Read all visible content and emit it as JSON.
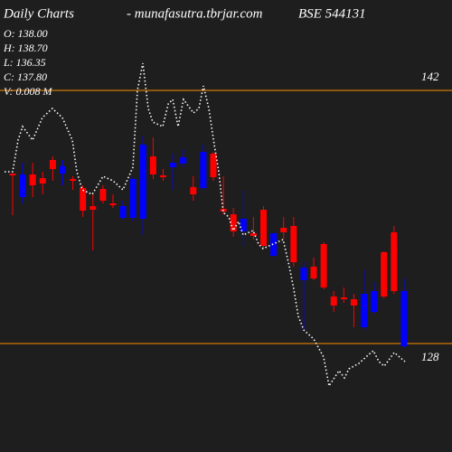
{
  "chart_data": {
    "type": "candlestick",
    "title": "Daily Charts",
    "source": "- munafasutra.tbrjar.com",
    "symbol": "BSE 544131",
    "ohlc_labels": [
      "O: 138.00",
      "H: 138.70",
      "L: 136.35",
      "C: 137.80",
      "V: 0.008 M"
    ],
    "up_color": "#0000ff",
    "down_color": "#ff0000",
    "level_color": "#ff8c00",
    "line_color": "#ffffff",
    "xlim": [
      -1.26,
      43.78
    ],
    "ylim": [
      122,
      147
    ],
    "levels": [
      142,
      128
    ],
    "open": [
      137.4,
      136.1,
      137.35,
      137.15,
      138.15,
      137.4,
      137.1,
      136.6,
      135.6,
      136.55,
      135.75,
      134.95,
      134.95,
      134.9,
      138.35,
      137.3,
      137.75,
      137.95,
      136.65,
      136.6,
      138.5,
      135.45,
      135.15,
      134.2,
      134.1,
      135.4,
      132.85,
      134.4,
      134.5,
      131.5,
      132.25,
      133.5,
      130.6,
      130.55,
      130.45,
      128.9,
      129.75,
      133.05,
      134.15,
      127.85
    ],
    "high": [
      137.4,
      138.0,
      138.0,
      137.5,
      138.35,
      138.15,
      137.25,
      136.75,
      136.25,
      136.75,
      136.25,
      135.9,
      137.25,
      139.5,
      139.4,
      137.65,
      138.5,
      138.75,
      137.25,
      139.0,
      138.6,
      137.25,
      135.5,
      136.5,
      135.0,
      135.6,
      134.25,
      135.0,
      135.0,
      132.5,
      132.75,
      133.6,
      130.9,
      131.1,
      130.75,
      132.1,
      131.4,
      133.1,
      134.5,
      131.6
    ],
    "low": [
      135.1,
      135.75,
      136.1,
      136.25,
      137.0,
      136.75,
      136.5,
      135.0,
      133.15,
      135.75,
      135.5,
      134.85,
      134.75,
      134.0,
      137.1,
      137.0,
      136.5,
      137.75,
      135.9,
      136.5,
      137.0,
      135.15,
      133.9,
      133.4,
      133.75,
      133.25,
      132.65,
      133.75,
      132.25,
      128.75,
      131.5,
      131.0,
      129.75,
      130.25,
      128.9,
      128.75,
      129.6,
      130.5,
      130.75,
      127.75
    ],
    "close": [
      137.3,
      137.35,
      136.75,
      136.85,
      137.65,
      137.8,
      137.0,
      135.35,
      135.4,
      135.9,
      135.65,
      135.6,
      137.1,
      139.0,
      137.35,
      137.2,
      138.0,
      138.3,
      136.25,
      138.6,
      137.2,
      135.3,
      134.2,
      134.9,
      133.95,
      133.4,
      134.1,
      134.15,
      132.5,
      132.2,
      131.6,
      131.1,
      130.1,
      130.45,
      130.1,
      130.75,
      130.9,
      130.6,
      130.9,
      130.9
    ],
    "line": {
      "x": [
        -0.81,
        0,
        0.54,
        0.99,
        1.98,
        2.97,
        3.96,
        4.95,
        5.95,
        6.4,
        6.94,
        7.93,
        9.01,
        10.0,
        10.99,
        11.98,
        12.43,
        12.97,
        13.51,
        13.96,
        14.95,
        15.5,
        15.95,
        16.49,
        17.03,
        18.02,
        18.56,
        19.01,
        19.55,
        20.09,
        20.54,
        20.99,
        21.53,
        21.98,
        22.52,
        22.97,
        23.96,
        24.5,
        24.95,
        25.95,
        26.94,
        27.48,
        28.02,
        28.47,
        29.01,
        30.0,
        30.99,
        31.53,
        32.52,
        33.06,
        33.51,
        34.5,
        35.5,
        35.95,
        36.49,
        37.03,
        38.02,
        39.1
      ],
      "values": [
        137.5,
        137.5,
        139.25,
        140.0,
        139.25,
        140.5,
        141.0,
        140.5,
        139.25,
        137.5,
        136.5,
        136.25,
        137.25,
        137.0,
        136.5,
        137.75,
        142.0,
        143.5,
        141.0,
        140.25,
        140.0,
        141.25,
        141.5,
        140.0,
        141.5,
        140.75,
        141.0,
        142.25,
        141.0,
        139.0,
        137.5,
        135.25,
        135.0,
        134.25,
        134.75,
        134.0,
        134.25,
        133.5,
        133.25,
        133.5,
        133.75,
        132.5,
        131.0,
        129.5,
        128.75,
        128.25,
        127.25,
        125.65,
        126.5,
        126.1,
        126.6,
        126.9,
        127.4,
        127.6,
        127.0,
        126.75,
        127.5,
        127.0
      ]
    }
  }
}
